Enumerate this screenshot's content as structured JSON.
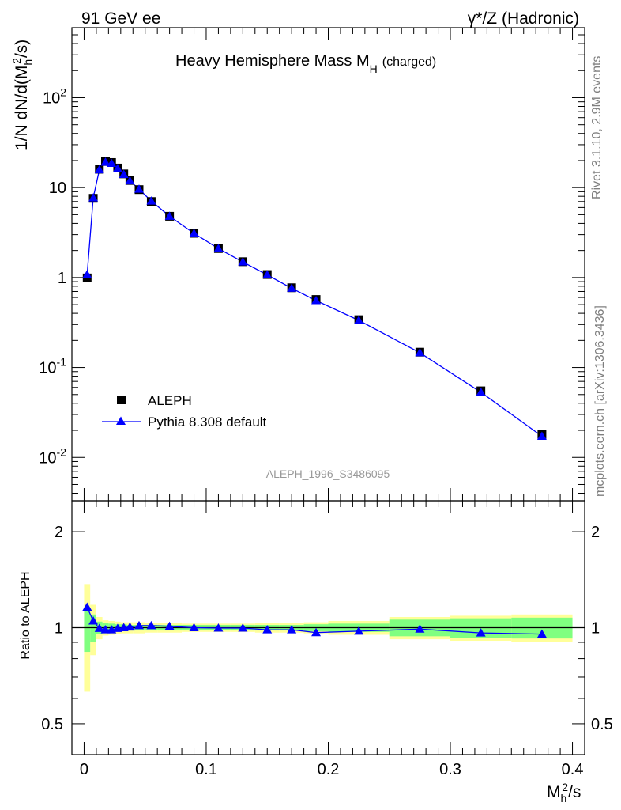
{
  "header": {
    "left": "91 GeV ee",
    "right_prefix": "γ*/Z (Hadronic)"
  },
  "side_labels": {
    "rivet": "Rivet 3.1.10,  2.9M events",
    "mcplots": "mcplots.cern.ch [arXiv:1306.3436]"
  },
  "colors": {
    "data_marker": "#000000",
    "mc_line": "#0000ff",
    "band_inner": "#80ff80",
    "band_outer": "#ffff99",
    "watermark": "#999999"
  },
  "chart_data": [
    {
      "type": "scatter",
      "scale": "log",
      "title": "Heavy Hemisphere Mass M",
      "title_sub": "H",
      "title_suffix": "(charged)",
      "ylabel": "1/N dN/d(M_h^2/s)",
      "watermark": "ALEPH_1996_S3486095",
      "xlim": [
        -0.01,
        0.41
      ],
      "ylim": [
        0.0033,
        600
      ],
      "y_ticks": [
        {
          "value": 0.01,
          "label": "10^-2"
        },
        {
          "value": 0.1,
          "label": "10^-1"
        },
        {
          "value": 1,
          "label": "1"
        },
        {
          "value": 10,
          "label": "10"
        },
        {
          "value": 100,
          "label": "10^2"
        }
      ],
      "legend": {
        "position": "lower-left"
      },
      "series": [
        {
          "name": "ALEPH",
          "marker": "square",
          "x": [
            0.0025,
            0.0075,
            0.0125,
            0.0175,
            0.0225,
            0.0275,
            0.0325,
            0.0375,
            0.045,
            0.055,
            0.07,
            0.09,
            0.11,
            0.13,
            0.15,
            0.17,
            0.19,
            0.225,
            0.275,
            0.325,
            0.375
          ],
          "y": [
            0.99,
            7.6,
            16.0,
            19.5,
            19.0,
            16.5,
            14.2,
            12.0,
            9.5,
            7.0,
            4.8,
            3.1,
            2.1,
            1.5,
            1.08,
            0.77,
            0.57,
            0.34,
            0.148,
            0.055,
            0.018
          ]
        },
        {
          "name": "Pythia 8.308 default",
          "marker": "triangle",
          "x": [
            0.0025,
            0.0075,
            0.0125,
            0.0175,
            0.0225,
            0.0275,
            0.0325,
            0.0375,
            0.045,
            0.055,
            0.07,
            0.09,
            0.11,
            0.13,
            0.15,
            0.17,
            0.19,
            0.225,
            0.275,
            0.325,
            0.375
          ],
          "y": [
            1.08,
            7.7,
            15.8,
            19.2,
            18.6,
            16.3,
            14.0,
            11.9,
            9.6,
            7.1,
            4.8,
            3.1,
            2.1,
            1.49,
            1.07,
            0.76,
            0.555,
            0.334,
            0.146,
            0.053,
            0.0172
          ]
        }
      ]
    },
    {
      "type": "line",
      "scale": "log",
      "ylabel": "Ratio to ALEPH",
      "xlabel": "M_h^2/s",
      "xlim": [
        -0.01,
        0.41
      ],
      "ylim": [
        0.4,
        2.5
      ],
      "x_ticks": [
        {
          "value": 0,
          "label": "0"
        },
        {
          "value": 0.1,
          "label": "0.1"
        },
        {
          "value": 0.2,
          "label": "0.2"
        },
        {
          "value": 0.3,
          "label": "0.3"
        },
        {
          "value": 0.4,
          "label": "0.4"
        }
      ],
      "y_ticks": [
        {
          "value": 0.5,
          "label": "0.5"
        },
        {
          "value": 1,
          "label": "1"
        },
        {
          "value": 2,
          "label": "2"
        }
      ],
      "bins": [
        {
          "lo": 0.0,
          "hi": 0.005,
          "inner": 0.16,
          "outer": 0.37
        },
        {
          "lo": 0.005,
          "hi": 0.01,
          "inner": 0.1,
          "outer": 0.18
        },
        {
          "lo": 0.01,
          "hi": 0.015,
          "inner": 0.045,
          "outer": 0.08
        },
        {
          "lo": 0.015,
          "hi": 0.02,
          "inner": 0.035,
          "outer": 0.055
        },
        {
          "lo": 0.02,
          "hi": 0.025,
          "inner": 0.03,
          "outer": 0.05
        },
        {
          "lo": 0.025,
          "hi": 0.03,
          "inner": 0.025,
          "outer": 0.045
        },
        {
          "lo": 0.03,
          "hi": 0.035,
          "inner": 0.025,
          "outer": 0.04
        },
        {
          "lo": 0.035,
          "hi": 0.04,
          "inner": 0.02,
          "outer": 0.04
        },
        {
          "lo": 0.04,
          "hi": 0.05,
          "inner": 0.02,
          "outer": 0.04
        },
        {
          "lo": 0.05,
          "hi": 0.06,
          "inner": 0.02,
          "outer": 0.035
        },
        {
          "lo": 0.06,
          "hi": 0.08,
          "inner": 0.02,
          "outer": 0.035
        },
        {
          "lo": 0.08,
          "hi": 0.1,
          "inner": 0.02,
          "outer": 0.03
        },
        {
          "lo": 0.1,
          "hi": 0.12,
          "inner": 0.02,
          "outer": 0.03
        },
        {
          "lo": 0.12,
          "hi": 0.14,
          "inner": 0.02,
          "outer": 0.03
        },
        {
          "lo": 0.14,
          "hi": 0.16,
          "inner": 0.02,
          "outer": 0.035
        },
        {
          "lo": 0.16,
          "hi": 0.18,
          "inner": 0.02,
          "outer": 0.035
        },
        {
          "lo": 0.18,
          "hi": 0.2,
          "inner": 0.025,
          "outer": 0.04
        },
        {
          "lo": 0.2,
          "hi": 0.25,
          "inner": 0.03,
          "outer": 0.05
        },
        {
          "lo": 0.25,
          "hi": 0.3,
          "inner": 0.06,
          "outer": 0.08
        },
        {
          "lo": 0.3,
          "hi": 0.35,
          "inner": 0.07,
          "outer": 0.09
        },
        {
          "lo": 0.35,
          "hi": 0.4,
          "inner": 0.075,
          "outer": 0.1
        }
      ],
      "series": [
        {
          "name": "Pythia 8.308 default",
          "x": [
            0.0025,
            0.0075,
            0.0125,
            0.0175,
            0.0225,
            0.0275,
            0.0325,
            0.0375,
            0.045,
            0.055,
            0.07,
            0.09,
            0.11,
            0.13,
            0.15,
            0.17,
            0.19,
            0.225,
            0.275,
            0.325,
            0.375
          ],
          "y": [
            1.16,
            1.05,
            0.995,
            0.985,
            0.985,
            0.995,
            1.0,
            1.005,
            1.015,
            1.015,
            1.01,
            1.0,
            0.997,
            0.997,
            0.985,
            0.985,
            0.965,
            0.975,
            0.99,
            0.963,
            0.955
          ]
        }
      ]
    }
  ]
}
